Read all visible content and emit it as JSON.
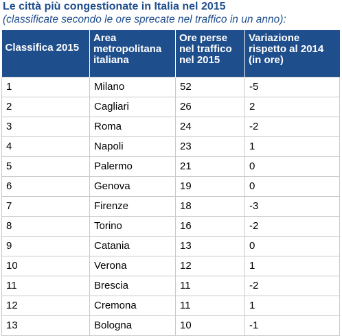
{
  "heading": {
    "title": "Le città più congestionate in Italia nel 2015",
    "subtitle": "(classificate secondo le ore sprecate nel traffico in un anno):"
  },
  "table": {
    "columns": [
      "Classifica 2015",
      "Area metropolitana italiana",
      "Ore perse nel traffico nel 2015",
      "Variazione rispetto al 2014 (in ore)"
    ],
    "rows": [
      [
        "1",
        "Milano",
        "52",
        "-5"
      ],
      [
        "2",
        "Cagliari",
        "26",
        "2"
      ],
      [
        "3",
        "Roma",
        "24",
        "-2"
      ],
      [
        "4",
        "Napoli",
        "23",
        "1"
      ],
      [
        "5",
        "Palermo",
        "21",
        "0"
      ],
      [
        "6",
        "Genova",
        "19",
        "0"
      ],
      [
        "7",
        "Firenze",
        "18",
        "-3"
      ],
      [
        "8",
        "Torino",
        "16",
        "-2"
      ],
      [
        "9",
        "Catania",
        "13",
        "0"
      ],
      [
        "10",
        "Verona",
        "12",
        "1"
      ],
      [
        "11",
        "Brescia",
        "11",
        "-2"
      ],
      [
        "12",
        "Cremona",
        "11",
        "1"
      ],
      [
        "13",
        "Bologna",
        "10",
        "-1"
      ]
    ]
  },
  "colors": {
    "header_background": "#1f4e8c",
    "title_text": "#1f4e8c",
    "grid_line": "#c8c8c8"
  }
}
